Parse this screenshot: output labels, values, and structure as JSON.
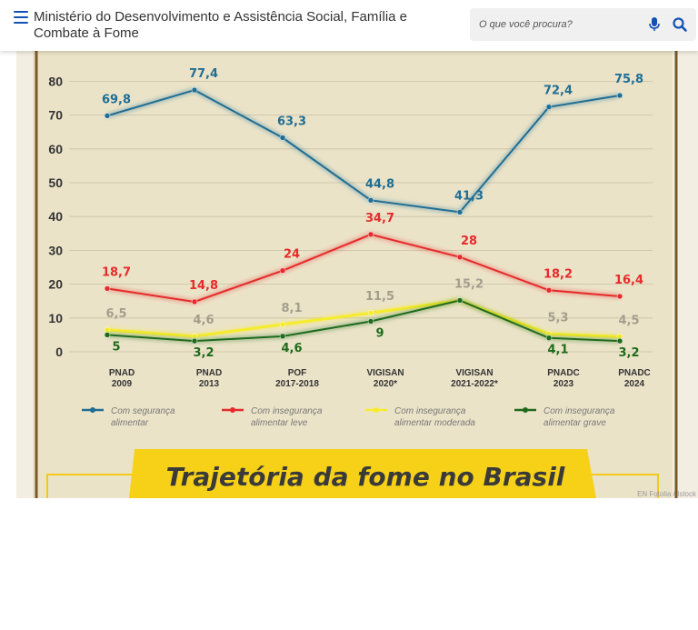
{
  "header": {
    "menu_icon": "hamburger-menu-icon",
    "title": "Ministério do Desenvolvimento e Assistência Social, Família e Combate à Fome",
    "search": {
      "placeholder": "O que você procura?",
      "mic_icon": "microphone-icon",
      "search_icon": "search-icon"
    }
  },
  "infographic": {
    "banner_title": "Trajetória da fome no Brasil",
    "credit": "EN Fotolia / Istock",
    "colors": {
      "seguranca": "#1f6e94",
      "leve": "#e52b2b",
      "moderada": "#f6ec2c",
      "grave": "#1e6b1c",
      "banner": "#f7d117"
    }
  },
  "chart_data": {
    "type": "line",
    "categories": [
      "PNAD 2009",
      "PNAD 2013",
      "POF 2017-2018",
      "VIGISAN 2020*",
      "VIGISAN 2021-2022*",
      "PNADC 2023",
      "PNADC 2024"
    ],
    "category_lines": [
      [
        "PNAD",
        "2009"
      ],
      [
        "PNAD",
        "2013"
      ],
      [
        "POF",
        "2017-2018"
      ],
      [
        "VIGISAN",
        "2020*"
      ],
      [
        "VIGISAN",
        "2021-2022*"
      ],
      [
        "PNADC",
        "2023"
      ],
      [
        "PNADC",
        "2024"
      ]
    ],
    "yticks": [
      "0",
      "10",
      "20",
      "30",
      "40",
      "50",
      "60",
      "70",
      "80"
    ],
    "ylim": [
      0,
      85
    ],
    "series": [
      {
        "name": "Com segurança alimentar",
        "key": "seguranca",
        "values": [
          69.8,
          77.4,
          63.3,
          44.8,
          41.3,
          72.4,
          75.8
        ],
        "labels": [
          "69,8",
          "77,4",
          "63,3",
          "44,8",
          "41,3",
          "72,4",
          "75,8"
        ]
      },
      {
        "name": "Com insegurança alimentar leve",
        "key": "leve",
        "values": [
          18.7,
          14.8,
          24,
          34.7,
          28,
          18.2,
          16.4
        ],
        "labels": [
          "18,7",
          "14,8",
          "24",
          "34,7",
          "28",
          "18,2",
          "16,4"
        ]
      },
      {
        "name": "Com insegurança alimentar moderada",
        "key": "moderada",
        "values": [
          6.5,
          4.6,
          8.1,
          11.5,
          15.2,
          5.3,
          4.5
        ],
        "labels": [
          "6,5",
          "4,6",
          "8,1",
          "11,5",
          "15,2",
          "5,3",
          "4,5"
        ]
      },
      {
        "name": "Com insegurança alimentar grave",
        "key": "grave",
        "values": [
          5,
          3.2,
          4.6,
          9,
          15.2,
          4.1,
          3.2
        ],
        "labels": [
          "5",
          "3,2",
          "4,6",
          "9",
          "",
          "4,1",
          "3,2"
        ]
      }
    ],
    "legend": [
      {
        "key": "seguranca",
        "lines": [
          "Com segurança",
          "alimentar"
        ]
      },
      {
        "key": "leve",
        "lines": [
          "Com insegurança",
          "alimentar leve"
        ]
      },
      {
        "key": "moderada",
        "lines": [
          "Com insegurança",
          "alimentar moderada"
        ]
      },
      {
        "key": "grave",
        "lines": [
          "Com insegurança",
          "alimentar grave"
        ]
      }
    ],
    "legend_position": "bottom"
  }
}
